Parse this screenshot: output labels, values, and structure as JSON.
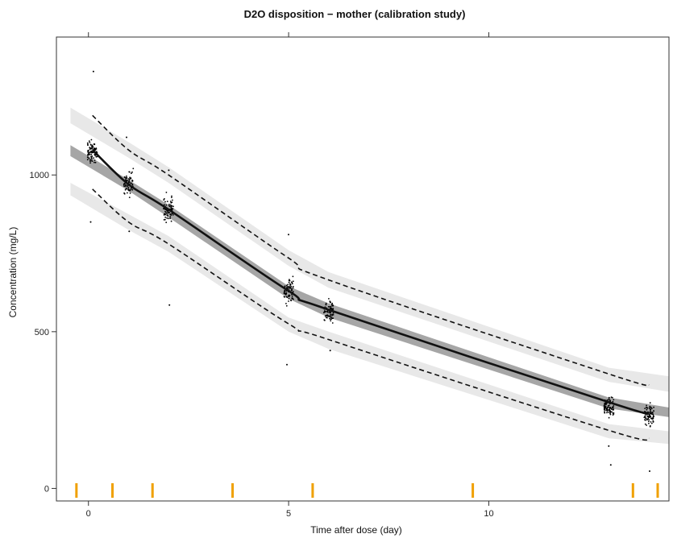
{
  "chart_data": {
    "type": "scatter",
    "title": "D2O disposition − mother (calibration study)",
    "xlabel": "Time after dose (day)",
    "ylabel": "Concentration (mg/L)",
    "xlim": [
      -0.8,
      14.5
    ],
    "ylim": [
      -40,
      1440
    ],
    "x_ticks": [
      0,
      5,
      10
    ],
    "x_tick_labels": [
      "0",
      "5",
      "10"
    ],
    "y_ticks": [
      0,
      500,
      1000
    ],
    "y_tick_labels": [
      "0",
      "500",
      "1000"
    ],
    "grid": false,
    "legend": "none",
    "series": [
      {
        "role": "median",
        "x": [
          0.1,
          1,
          2,
          5,
          6,
          13,
          14
        ],
        "y": [
          1080,
          970,
          890,
          630,
          570,
          275,
          240
        ],
        "pi_low": [
          1060,
          950,
          865,
          605,
          545,
          255,
          225
        ],
        "pi_high": [
          1095,
          985,
          905,
          645,
          590,
          290,
          255
        ]
      },
      {
        "role": "p5",
        "x": [
          0.1,
          1,
          2,
          5,
          6,
          13,
          14
        ],
        "y": [
          955,
          850,
          780,
          525,
          475,
          185,
          160
        ],
        "pi_low": [
          935,
          825,
          755,
          500,
          445,
          160,
          140
        ],
        "pi_high": [
          975,
          875,
          805,
          545,
          500,
          205,
          180
        ]
      },
      {
        "role": "p95",
        "x": [
          0.1,
          1,
          2,
          5,
          6,
          13,
          14
        ],
        "y": [
          1190,
          1080,
          1000,
          735,
          665,
          365,
          330
        ],
        "pi_low": [
          1165,
          1055,
          975,
          710,
          640,
          340,
          305
        ],
        "pi_high": [
          1215,
          1105,
          1025,
          760,
          690,
          385,
          355
        ]
      }
    ],
    "observations": [
      {
        "x": 0.1,
        "n": 90,
        "center": 1070,
        "spread": 55,
        "outliers": [
          1330,
          850
        ]
      },
      {
        "x": 1.0,
        "n": 75,
        "center": 975,
        "spread": 50,
        "outliers": [
          820,
          1120
        ]
      },
      {
        "x": 2.0,
        "n": 75,
        "center": 890,
        "spread": 55,
        "outliers": [
          585,
          1015
        ]
      },
      {
        "x": 5.0,
        "n": 80,
        "center": 630,
        "spread": 65,
        "outliers": [
          395,
          810
        ]
      },
      {
        "x": 6.0,
        "n": 75,
        "center": 560,
        "spread": 55,
        "outliers": [
          440
        ]
      },
      {
        "x": 13.0,
        "n": 85,
        "center": 260,
        "spread": 45,
        "outliers": [
          75,
          135
        ]
      },
      {
        "x": 14.0,
        "n": 85,
        "center": 235,
        "spread": 45,
        "outliers": [
          55
        ]
      }
    ],
    "rug_bins": [
      -0.3,
      0.6,
      1.6,
      3.6,
      5.6,
      9.6,
      13.6,
      14.5
    ],
    "colors": {
      "median_line": "#111111",
      "percentile_line": "#111111",
      "median_pi": "#a6a6a6",
      "percentile_pi": "#e8e8e8",
      "points": "#000000",
      "rug": "#f0a000"
    }
  }
}
